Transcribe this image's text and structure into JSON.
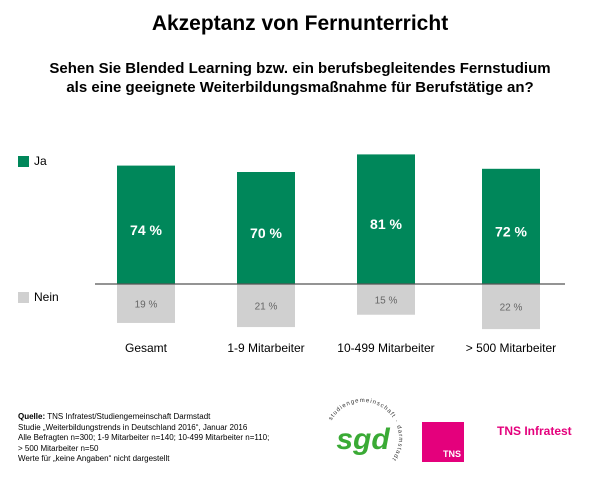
{
  "title": "Akzeptanz von Fernunterricht",
  "subtitle_line1": "Sehen Sie Blended Learning bzw. ein berufsbegleitendes Fernstudium",
  "subtitle_line2": "als eine geeignete Weiterbildungsmaßnahme für Berufstätige an?",
  "chart_data": {
    "type": "bar",
    "categories": [
      "Gesamt",
      "1-9 Mitarbeiter",
      "10-499 Mitarbeiter",
      "> 500 Mitarbeiter"
    ],
    "series": [
      {
        "name": "Ja",
        "values": [
          74,
          70,
          81,
          72
        ],
        "labels": [
          "74 %",
          "70 %",
          "81 %",
          "72 %"
        ],
        "color": "#00875a"
      },
      {
        "name": "Nein",
        "values": [
          19,
          21,
          15,
          22
        ],
        "labels": [
          "19 %",
          "21 %",
          "15 %",
          "22 %"
        ],
        "color": "#d0d0d0"
      }
    ],
    "unit": "%",
    "layout": "diverging-from-baseline",
    "legend": "left",
    "grid": false
  },
  "legend": {
    "ja": "Ja",
    "nein": "Nein"
  },
  "source": {
    "label": "Quelle:",
    "line1": "TNS Infratest/Studiengemeinschaft Darmstadt",
    "line2": "Studie „Weiterbildungstrends in Deutschland 2016“, Januar 2016",
    "line3": "Alle Befragten n=300; 1-9 Mitarbeiter n=140; 10-499 Mitarbeiter n=110;",
    "line4": "> 500 Mitarbeiter n=50",
    "line5": "Werte für „keine Angaben“ nicht dargestellt"
  },
  "logos": {
    "sgd": "sgd",
    "sgd_ring_text": "studiengemeinschaft · darmstadt",
    "tns_box": "TNS",
    "tns_name": "TNS Infratest"
  },
  "colors": {
    "ja": "#00875a",
    "nein": "#d0d0d0",
    "tns": "#e4007c",
    "sgd": "#3aaa35"
  }
}
